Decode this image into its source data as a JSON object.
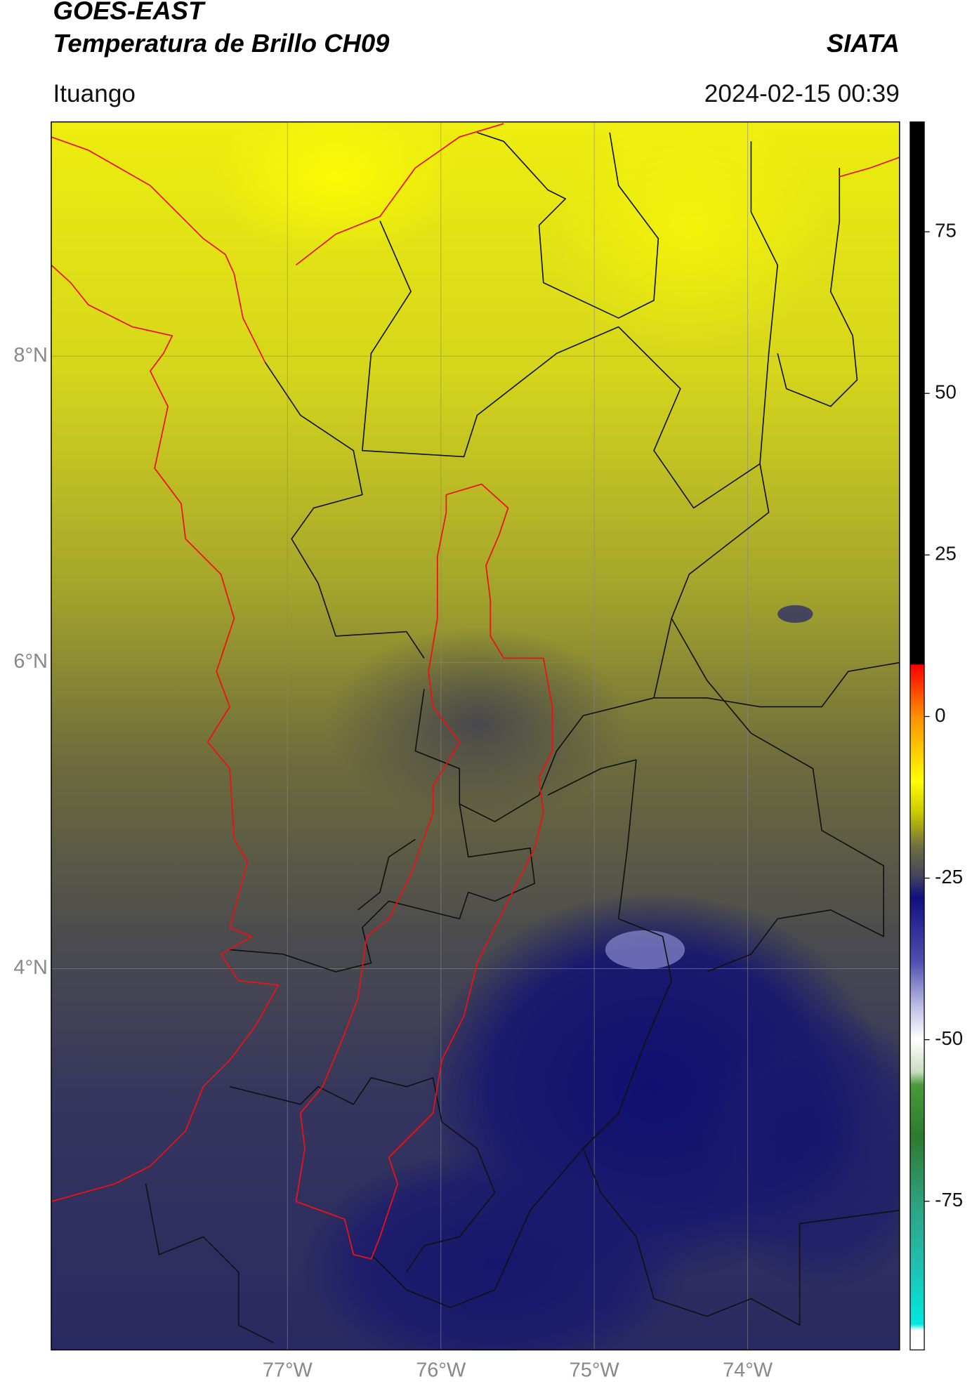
{
  "chart_data": {
    "type": "map",
    "title": "GOES-EAST",
    "subtitle": "Temperatura de Brillo CH09",
    "source": "SIATA",
    "location": "Ituango",
    "timestamp": "2024-02-15 00:39",
    "xlim": [
      -78.54,
      -73.01
    ],
    "ylim": [
      1.51,
      9.53
    ],
    "xticks": [
      {
        "value": -77,
        "label": "77°W"
      },
      {
        "value": -76,
        "label": "76°W"
      },
      {
        "value": -75,
        "label": "75°W"
      },
      {
        "value": -74,
        "label": "74°W"
      }
    ],
    "yticks": [
      {
        "value": 4,
        "label": "4°N"
      },
      {
        "value": 6,
        "label": "6°N"
      },
      {
        "value": 8,
        "label": "8°N"
      }
    ],
    "grid": true,
    "colorbar": {
      "lim": [
        -98,
        92
      ],
      "ticks": [
        -75,
        -50,
        -25,
        0,
        25,
        50,
        75
      ],
      "stops": [
        {
          "value": -98,
          "color": "#ffffff"
        },
        {
          "value": -95,
          "color": "#ffffff"
        },
        {
          "value": -94,
          "color": "#00e8e0"
        },
        {
          "value": -85,
          "color": "#20c0b0"
        },
        {
          "value": -75,
          "color": "#2fa07e"
        },
        {
          "value": -65,
          "color": "#2e7a2e"
        },
        {
          "value": -57,
          "color": "#4a9a3a"
        },
        {
          "value": -55,
          "color": "#c8dcc0"
        },
        {
          "value": -50,
          "color": "#ffffff"
        },
        {
          "value": -45,
          "color": "#c0c0e8"
        },
        {
          "value": -38,
          "color": "#5050b0"
        },
        {
          "value": -28,
          "color": "#10107f"
        },
        {
          "value": -25,
          "color": "#404060"
        },
        {
          "value": -20,
          "color": "#707040"
        },
        {
          "value": -15,
          "color": "#c8c800"
        },
        {
          "value": -10,
          "color": "#ffff00"
        },
        {
          "value": 0,
          "color": "#ff9000"
        },
        {
          "value": 8,
          "color": "#ff0000"
        },
        {
          "value": 8.1,
          "color": "#000000"
        },
        {
          "value": 92,
          "color": "#000000"
        }
      ]
    }
  }
}
